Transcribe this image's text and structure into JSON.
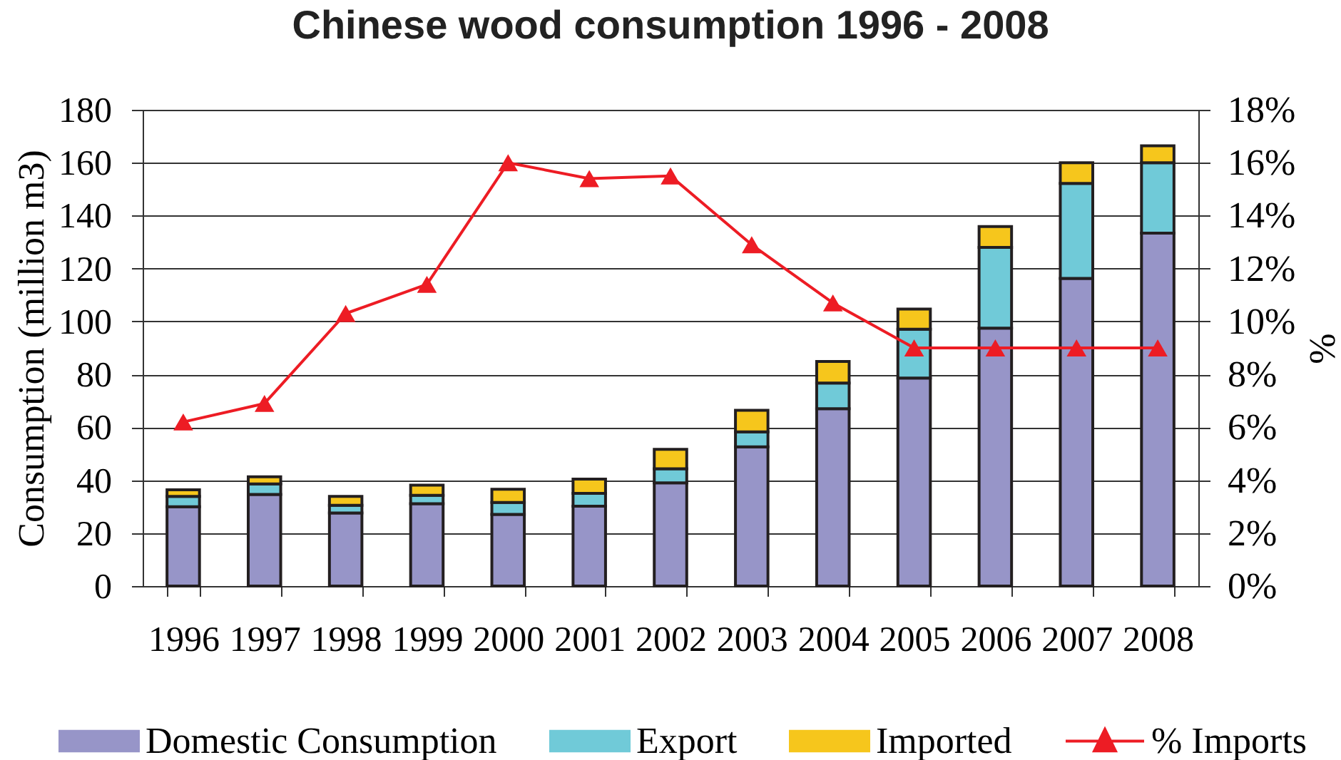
{
  "chart_data": {
    "type": "bar",
    "title": "Chinese wood consumption 1996 - 2008",
    "ylabel": "Consumption (million m3)",
    "y2label": "%",
    "categories": [
      "1996",
      "1997",
      "1998",
      "1999",
      "2000",
      "2001",
      "2002",
      "2003",
      "2004",
      "2005",
      "2006",
      "2007",
      "2008"
    ],
    "series": [
      {
        "name": "Domestic Consumption",
        "color": "#9795c8",
        "values": [
          30,
          34.6,
          27.6,
          31.1,
          27.1,
          30.2,
          39,
          52.6,
          67,
          78.6,
          97.5,
          116.3,
          133.4
        ]
      },
      {
        "name": "Export",
        "color": "#70cad8",
        "values": [
          3.9,
          4,
          2.9,
          3.2,
          4.5,
          4.8,
          5.3,
          5.7,
          9.7,
          18.5,
          30.5,
          35.9,
          26.6
        ]
      },
      {
        "name": "Imported",
        "color": "#f6c61c",
        "values": [
          2.5,
          2.7,
          3.4,
          3.8,
          5,
          5.4,
          7.4,
          8.1,
          8.2,
          7.6,
          7.9,
          7.8,
          6.4
        ]
      },
      {
        "name": "% Imports",
        "type": "line",
        "axis": "y2",
        "color": "#ed1c24",
        "values": [
          6.2,
          6.9,
          10.3,
          11.4,
          16,
          15.4,
          15.5,
          12.9,
          10.7,
          9,
          9,
          9,
          9
        ]
      }
    ],
    "stacked": true,
    "ylim": [
      0,
      180
    ],
    "yticks": [
      0,
      20,
      40,
      60,
      80,
      100,
      120,
      140,
      160,
      180
    ],
    "y2lim": [
      0,
      18
    ],
    "y2ticks": [
      {
        "value": 0,
        "label": "0%"
      },
      {
        "value": 2,
        "label": "2%"
      },
      {
        "value": 4,
        "label": "4%"
      },
      {
        "value": 6,
        "label": "6%"
      },
      {
        "value": 8,
        "label": "8%"
      },
      {
        "value": 10,
        "label": "10%"
      },
      {
        "value": 12,
        "label": "12%"
      },
      {
        "value": 14,
        "label": "14%"
      },
      {
        "value": 16,
        "label": "16%"
      },
      {
        "value": 18,
        "label": "18%"
      }
    ],
    "grid": "y",
    "legend": "bottom",
    "marker": "triangle"
  }
}
